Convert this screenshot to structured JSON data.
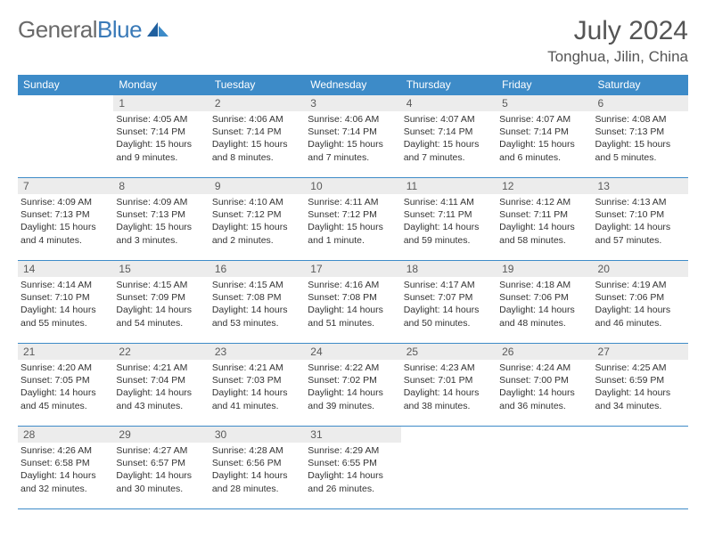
{
  "logo": {
    "text1": "General",
    "text2": "Blue",
    "colors": {
      "general": "#6a6a6a",
      "blue": "#3a7ab8"
    }
  },
  "title": "July 2024",
  "location": "Tonghua, Jilin, China",
  "colors": {
    "header_bg": "#3d8bc8",
    "header_fg": "#ffffff",
    "row_border": "#3d8bc8",
    "daynum_bg": "#ececec",
    "daynum_fg": "#5a5a5a",
    "body_bg": "#ffffff",
    "text": "#333333"
  },
  "fonts": {
    "title_size": 30,
    "location_size": 17,
    "dayhead_size": 12,
    "daynum_size": 12,
    "body_size": 10.5
  },
  "day_headers": [
    "Sunday",
    "Monday",
    "Tuesday",
    "Wednesday",
    "Thursday",
    "Friday",
    "Saturday"
  ],
  "weeks": [
    [
      {
        "empty": true
      },
      {
        "n": "1",
        "sunrise": "4:05 AM",
        "sunset": "7:14 PM",
        "daylight": "15 hours and 9 minutes."
      },
      {
        "n": "2",
        "sunrise": "4:06 AM",
        "sunset": "7:14 PM",
        "daylight": "15 hours and 8 minutes."
      },
      {
        "n": "3",
        "sunrise": "4:06 AM",
        "sunset": "7:14 PM",
        "daylight": "15 hours and 7 minutes."
      },
      {
        "n": "4",
        "sunrise": "4:07 AM",
        "sunset": "7:14 PM",
        "daylight": "15 hours and 7 minutes."
      },
      {
        "n": "5",
        "sunrise": "4:07 AM",
        "sunset": "7:14 PM",
        "daylight": "15 hours and 6 minutes."
      },
      {
        "n": "6",
        "sunrise": "4:08 AM",
        "sunset": "7:13 PM",
        "daylight": "15 hours and 5 minutes."
      }
    ],
    [
      {
        "n": "7",
        "sunrise": "4:09 AM",
        "sunset": "7:13 PM",
        "daylight": "15 hours and 4 minutes."
      },
      {
        "n": "8",
        "sunrise": "4:09 AM",
        "sunset": "7:13 PM",
        "daylight": "15 hours and 3 minutes."
      },
      {
        "n": "9",
        "sunrise": "4:10 AM",
        "sunset": "7:12 PM",
        "daylight": "15 hours and 2 minutes."
      },
      {
        "n": "10",
        "sunrise": "4:11 AM",
        "sunset": "7:12 PM",
        "daylight": "15 hours and 1 minute."
      },
      {
        "n": "11",
        "sunrise": "4:11 AM",
        "sunset": "7:11 PM",
        "daylight": "14 hours and 59 minutes."
      },
      {
        "n": "12",
        "sunrise": "4:12 AM",
        "sunset": "7:11 PM",
        "daylight": "14 hours and 58 minutes."
      },
      {
        "n": "13",
        "sunrise": "4:13 AM",
        "sunset": "7:10 PM",
        "daylight": "14 hours and 57 minutes."
      }
    ],
    [
      {
        "n": "14",
        "sunrise": "4:14 AM",
        "sunset": "7:10 PM",
        "daylight": "14 hours and 55 minutes."
      },
      {
        "n": "15",
        "sunrise": "4:15 AM",
        "sunset": "7:09 PM",
        "daylight": "14 hours and 54 minutes."
      },
      {
        "n": "16",
        "sunrise": "4:15 AM",
        "sunset": "7:08 PM",
        "daylight": "14 hours and 53 minutes."
      },
      {
        "n": "17",
        "sunrise": "4:16 AM",
        "sunset": "7:08 PM",
        "daylight": "14 hours and 51 minutes."
      },
      {
        "n": "18",
        "sunrise": "4:17 AM",
        "sunset": "7:07 PM",
        "daylight": "14 hours and 50 minutes."
      },
      {
        "n": "19",
        "sunrise": "4:18 AM",
        "sunset": "7:06 PM",
        "daylight": "14 hours and 48 minutes."
      },
      {
        "n": "20",
        "sunrise": "4:19 AM",
        "sunset": "7:06 PM",
        "daylight": "14 hours and 46 minutes."
      }
    ],
    [
      {
        "n": "21",
        "sunrise": "4:20 AM",
        "sunset": "7:05 PM",
        "daylight": "14 hours and 45 minutes."
      },
      {
        "n": "22",
        "sunrise": "4:21 AM",
        "sunset": "7:04 PM",
        "daylight": "14 hours and 43 minutes."
      },
      {
        "n": "23",
        "sunrise": "4:21 AM",
        "sunset": "7:03 PM",
        "daylight": "14 hours and 41 minutes."
      },
      {
        "n": "24",
        "sunrise": "4:22 AM",
        "sunset": "7:02 PM",
        "daylight": "14 hours and 39 minutes."
      },
      {
        "n": "25",
        "sunrise": "4:23 AM",
        "sunset": "7:01 PM",
        "daylight": "14 hours and 38 minutes."
      },
      {
        "n": "26",
        "sunrise": "4:24 AM",
        "sunset": "7:00 PM",
        "daylight": "14 hours and 36 minutes."
      },
      {
        "n": "27",
        "sunrise": "4:25 AM",
        "sunset": "6:59 PM",
        "daylight": "14 hours and 34 minutes."
      }
    ],
    [
      {
        "n": "28",
        "sunrise": "4:26 AM",
        "sunset": "6:58 PM",
        "daylight": "14 hours and 32 minutes."
      },
      {
        "n": "29",
        "sunrise": "4:27 AM",
        "sunset": "6:57 PM",
        "daylight": "14 hours and 30 minutes."
      },
      {
        "n": "30",
        "sunrise": "4:28 AM",
        "sunset": "6:56 PM",
        "daylight": "14 hours and 28 minutes."
      },
      {
        "n": "31",
        "sunrise": "4:29 AM",
        "sunset": "6:55 PM",
        "daylight": "14 hours and 26 minutes."
      },
      {
        "empty": true
      },
      {
        "empty": true
      },
      {
        "empty": true
      }
    ]
  ],
  "labels": {
    "sunrise": "Sunrise:",
    "sunset": "Sunset:",
    "daylight": "Daylight:"
  }
}
